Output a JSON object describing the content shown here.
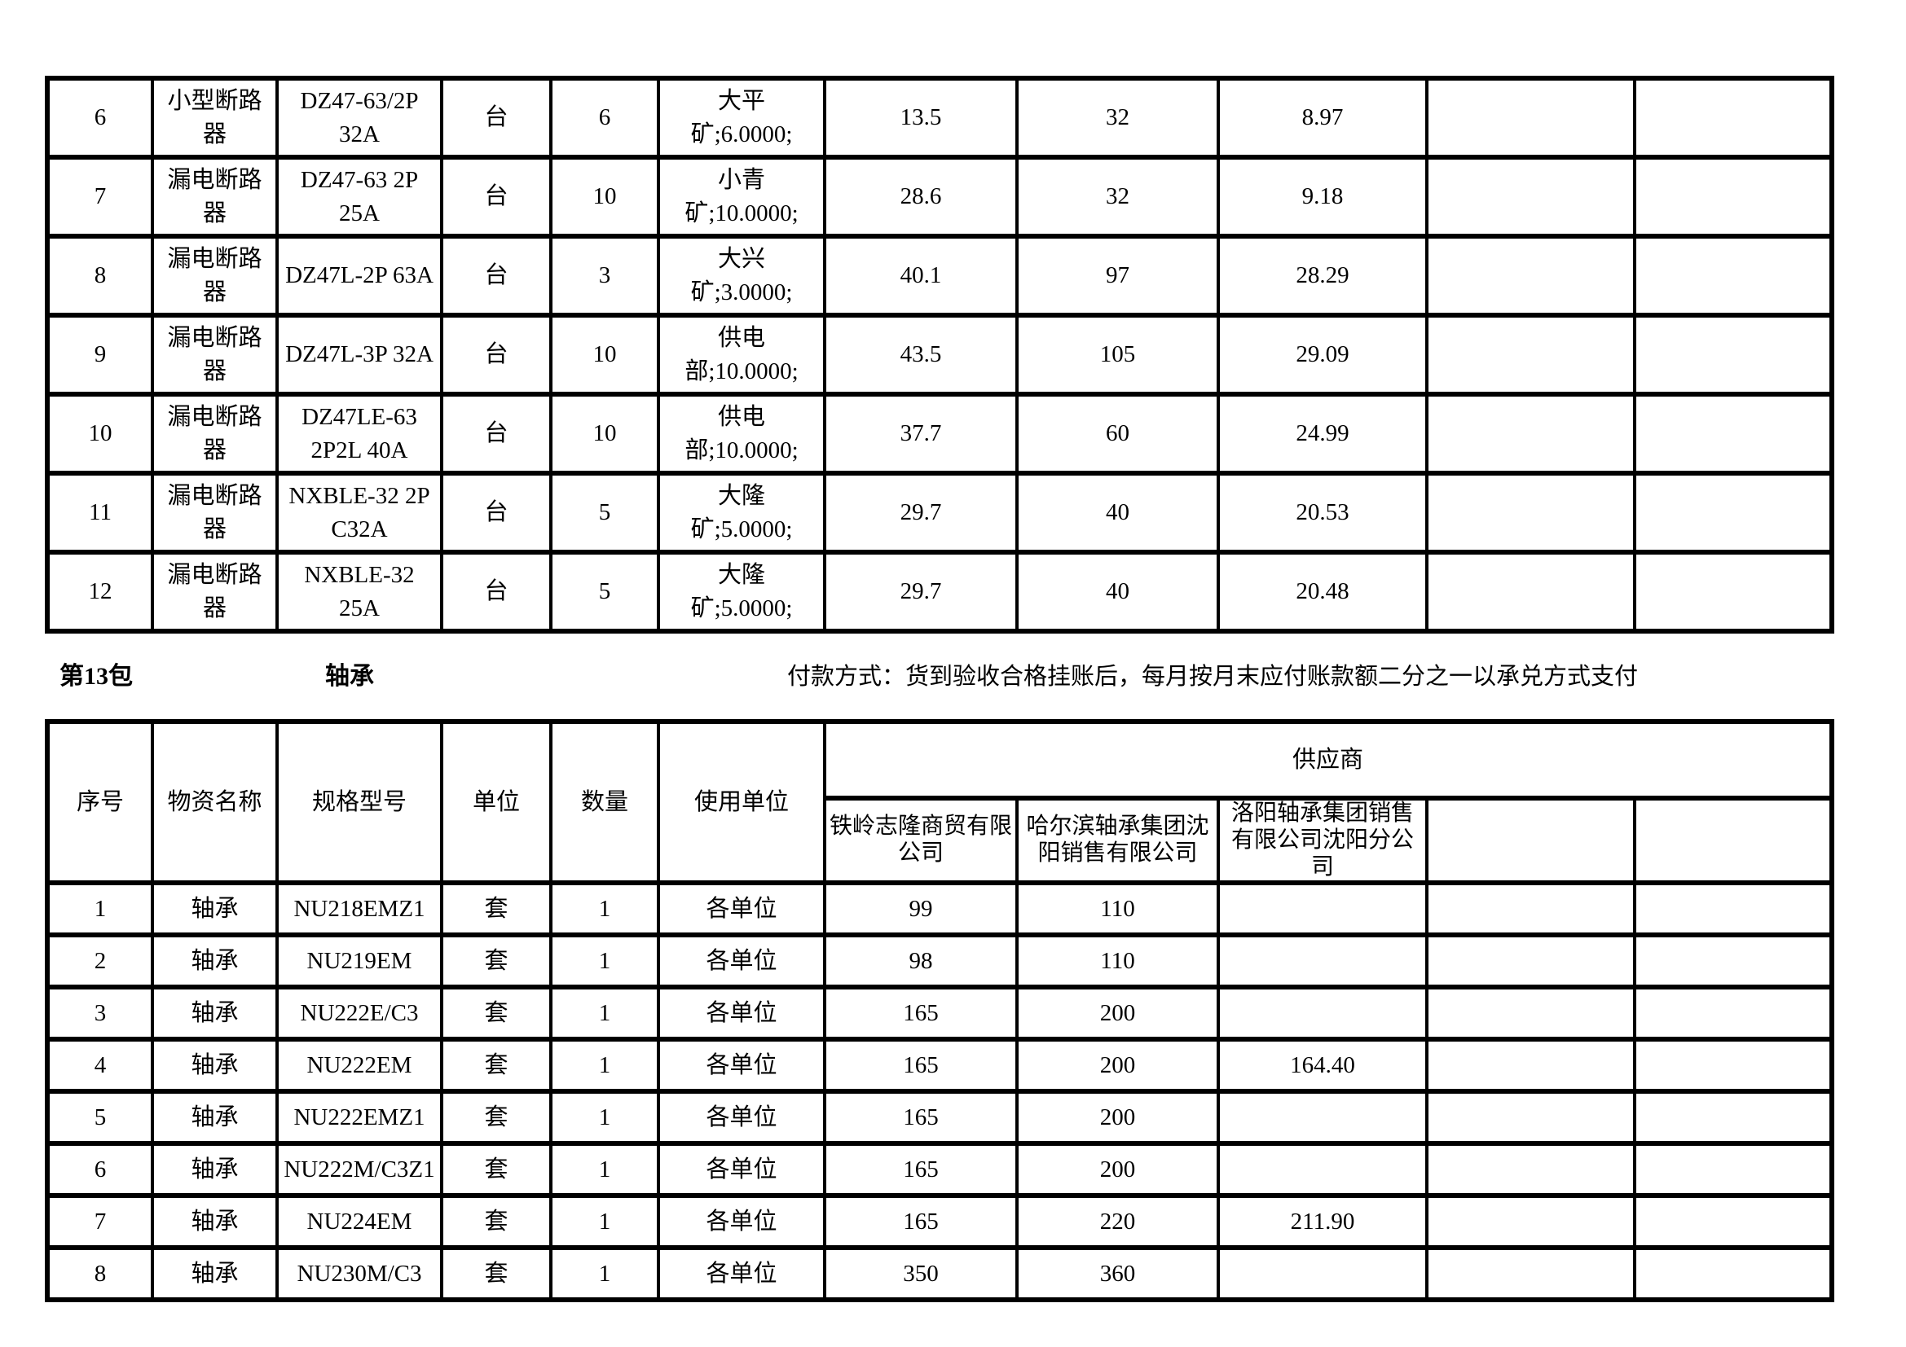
{
  "colors": {
    "border": "#000000",
    "text": "#000000",
    "background": "#ffffff"
  },
  "section_header": {
    "package_label": "第13包",
    "package_name": "轴承",
    "payment_text": "付款方式：货到验收合格挂账后，每月按月末应付账款额二分之一以承兑方式支付"
  },
  "breaker_table": {
    "rows": [
      {
        "seq": "6",
        "name": "小型断路器",
        "spec": [
          "DZ47-63/2P",
          "32A"
        ],
        "unit": "台",
        "qty": "6",
        "usage": [
          "大平",
          "矿;6.0000;"
        ],
        "p1": "13.5",
        "p2": "32",
        "p3": "8.97",
        "e1": "",
        "e2": ""
      },
      {
        "seq": "7",
        "name": "漏电断路器",
        "spec": [
          "DZ47-63 2P",
          "25A"
        ],
        "unit": "台",
        "qty": "10",
        "usage": [
          "小青",
          "矿;10.0000;"
        ],
        "p1": "28.6",
        "p2": "32",
        "p3": "9.18",
        "e1": "",
        "e2": ""
      },
      {
        "seq": "8",
        "name": "漏电断路器",
        "spec": "DZ47L-2P 63A",
        "unit": "台",
        "qty": "3",
        "usage": [
          "大兴",
          "矿;3.0000;"
        ],
        "p1": "40.1",
        "p2": "97",
        "p3": "28.29",
        "e1": "",
        "e2": ""
      },
      {
        "seq": "9",
        "name": "漏电断路器",
        "spec": "DZ47L-3P 32A",
        "unit": "台",
        "qty": "10",
        "usage": [
          "供电",
          "部;10.0000;"
        ],
        "p1": "43.5",
        "p2": "105",
        "p3": "29.09",
        "e1": "",
        "e2": ""
      },
      {
        "seq": "10",
        "name": "漏电断路器",
        "spec": [
          "DZ47LE-63",
          "2P2L 40A"
        ],
        "unit": "台",
        "qty": "10",
        "usage": [
          "供电",
          "部;10.0000;"
        ],
        "p1": "37.7",
        "p2": "60",
        "p3": "24.99",
        "e1": "",
        "e2": ""
      },
      {
        "seq": "11",
        "name": "漏电断路器",
        "spec": [
          "NXBLE-32 2P",
          "C32A"
        ],
        "unit": "台",
        "qty": "5",
        "usage": [
          "大隆",
          "矿;5.0000;"
        ],
        "p1": "29.7",
        "p2": "40",
        "p3": "20.53",
        "e1": "",
        "e2": ""
      },
      {
        "seq": "12",
        "name": "漏电断路器",
        "spec": "NXBLE-32 25A",
        "unit": "台",
        "qty": "5",
        "usage": [
          "大隆",
          "矿;5.0000;"
        ],
        "p1": "29.7",
        "p2": "40",
        "p3": "20.48",
        "e1": "",
        "e2": ""
      }
    ]
  },
  "bearing_table": {
    "headers": {
      "seq": "序号",
      "name": "物资名称",
      "spec": "规格型号",
      "unit": "单位",
      "qty": "数量",
      "usage": "使用单位",
      "supplier_group": "供应商",
      "suppliers": [
        "铁岭志隆商贸有限公司",
        "哈尔滨轴承集团沈阳销售有限公司",
        "洛阳轴承集团销售有限公司沈阳分公司",
        "",
        ""
      ]
    },
    "rows": [
      {
        "seq": "1",
        "name": "轴承",
        "spec": "NU218EMZ1",
        "unit": "套",
        "qty": "1",
        "usage": "各单位",
        "p1": "99",
        "p2": "110",
        "p3": "",
        "e1": "",
        "e2": ""
      },
      {
        "seq": "2",
        "name": "轴承",
        "spec": "NU219EM",
        "unit": "套",
        "qty": "1",
        "usage": "各单位",
        "p1": "98",
        "p2": "110",
        "p3": "",
        "e1": "",
        "e2": ""
      },
      {
        "seq": "3",
        "name": "轴承",
        "spec": "NU222E/C3",
        "unit": "套",
        "qty": "1",
        "usage": "各单位",
        "p1": "165",
        "p2": "200",
        "p3": "",
        "e1": "",
        "e2": ""
      },
      {
        "seq": "4",
        "name": "轴承",
        "spec": "NU222EM",
        "unit": "套",
        "qty": "1",
        "usage": "各单位",
        "p1": "165",
        "p2": "200",
        "p3": "164.40",
        "e1": "",
        "e2": ""
      },
      {
        "seq": "5",
        "name": "轴承",
        "spec": "NU222EMZ1",
        "unit": "套",
        "qty": "1",
        "usage": "各单位",
        "p1": "165",
        "p2": "200",
        "p3": "",
        "e1": "",
        "e2": ""
      },
      {
        "seq": "6",
        "name": "轴承",
        "spec": "NU222M/C3Z1",
        "unit": "套",
        "qty": "1",
        "usage": "各单位",
        "p1": "165",
        "p2": "200",
        "p3": "",
        "e1": "",
        "e2": ""
      },
      {
        "seq": "7",
        "name": "轴承",
        "spec": "NU224EM",
        "unit": "套",
        "qty": "1",
        "usage": "各单位",
        "p1": "165",
        "p2": "220",
        "p3": "211.90",
        "e1": "",
        "e2": ""
      },
      {
        "seq": "8",
        "name": "轴承",
        "spec": "NU230M/C3",
        "unit": "套",
        "qty": "1",
        "usage": "各单位",
        "p1": "350",
        "p2": "360",
        "p3": "",
        "e1": "",
        "e2": ""
      }
    ]
  }
}
